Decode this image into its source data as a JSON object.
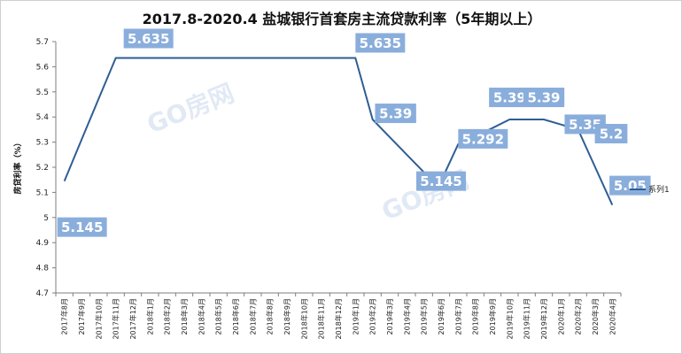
{
  "chart_data": {
    "type": "line",
    "title": "2017.8-2020.4 盐城银行首套房主流贷款利率（5年期以上）",
    "ylabel": "房贷利率（%）",
    "xlabel": "",
    "ylim": [
      4.7,
      5.7
    ],
    "ytick_labels": [
      "4.7",
      "4.8",
      "4.9",
      "5",
      "5.1",
      "5.2",
      "5.3",
      "5.4",
      "5.5",
      "5.6",
      "5.7"
    ],
    "grid": false,
    "legend_position": "right",
    "categories": [
      "2017年8月",
      "2017年9月",
      "2017年10月",
      "2017年11月",
      "2017年12月",
      "2018年1月",
      "2018年2月",
      "2018年3月",
      "2018年4月",
      "2018年5月",
      "2018年6月",
      "2018年7月",
      "2018年8月",
      "2018年9月",
      "2018年10月",
      "2018年11月",
      "2018年12月",
      "2019年1月",
      "2019年2月",
      "2019年3月",
      "2019年4月",
      "2019年5月",
      "2019年6月",
      "2019年7月",
      "2019年8月",
      "2019年9月",
      "2019年10月",
      "2019年11月",
      "2019年12月",
      "2020年1月",
      "2020年2月",
      "2020年3月",
      "2020年4月"
    ],
    "series": [
      {
        "name": "系列1",
        "color": "#2e5e93",
        "values": [
          5.145,
          5.309,
          5.472,
          5.635,
          5.635,
          5.635,
          5.635,
          5.635,
          5.635,
          5.635,
          5.635,
          5.635,
          5.635,
          5.635,
          5.635,
          5.635,
          5.635,
          5.635,
          5.39,
          5.32,
          5.25,
          5.18,
          5.145,
          5.292,
          5.323,
          5.356,
          5.39,
          5.39,
          5.39,
          5.37,
          5.35,
          5.2,
          5.05
        ]
      }
    ],
    "data_labels": [
      {
        "index": 0,
        "text": "5.145"
      },
      {
        "index": 3,
        "text": "5.635"
      },
      {
        "index": 17,
        "text": "5.635"
      },
      {
        "index": 18,
        "text": "5.39"
      },
      {
        "index": 22,
        "text": "5.145"
      },
      {
        "index": 23,
        "text": "5.292"
      },
      {
        "index": 26,
        "text": "5.39"
      },
      {
        "index": 28,
        "text": "5.39"
      },
      {
        "index": 30,
        "text": "5.35"
      },
      {
        "index": 31,
        "text": "5.2"
      },
      {
        "index": 32,
        "text": "5.05"
      }
    ],
    "label_box_color": "#8aaedc",
    "watermark": "GO房网"
  }
}
